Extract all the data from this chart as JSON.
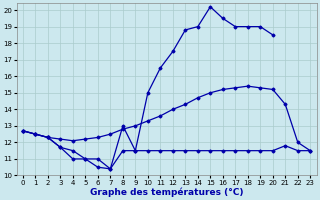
{
  "title": "Graphe des températures (°C)",
  "bg_color": "#cce8ee",
  "grid_color": "#aacccc",
  "line_color": "#0000aa",
  "xlim": [
    -0.5,
    23.5
  ],
  "ylim": [
    10,
    20.4
  ],
  "xticks": [
    0,
    1,
    2,
    3,
    4,
    5,
    6,
    7,
    8,
    9,
    10,
    11,
    12,
    13,
    14,
    15,
    16,
    17,
    18,
    19,
    20,
    21,
    22,
    23
  ],
  "yticks": [
    10,
    11,
    12,
    13,
    14,
    15,
    16,
    17,
    18,
    19,
    20
  ],
  "line_max": {
    "x": [
      0,
      1,
      2,
      3,
      4,
      5,
      6,
      7,
      8,
      9,
      10,
      11,
      12,
      13,
      14,
      15,
      16,
      17,
      18,
      19,
      20
    ],
    "y": [
      12.7,
      12.5,
      12.3,
      11.7,
      11.0,
      11.0,
      10.5,
      10.4,
      13.0,
      11.5,
      15.0,
      16.5,
      17.5,
      18.8,
      19.0,
      20.2,
      19.5,
      19.0,
      19.0,
      19.0,
      18.5
    ]
  },
  "line_min": {
    "x": [
      0,
      1,
      2,
      3,
      4,
      5,
      6,
      7,
      8,
      9,
      10,
      11,
      12,
      13,
      14,
      15,
      16,
      17,
      18,
      19,
      20,
      21,
      22,
      23
    ],
    "y": [
      12.7,
      12.5,
      12.3,
      11.7,
      11.5,
      11.0,
      11.0,
      10.4,
      11.5,
      11.5,
      11.5,
      11.5,
      11.5,
      11.5,
      11.5,
      11.5,
      11.5,
      11.5,
      11.5,
      11.5,
      11.5,
      11.8,
      11.5,
      11.5
    ]
  },
  "line_avg": {
    "x": [
      0,
      1,
      2,
      3,
      4,
      5,
      6,
      7,
      8,
      9,
      10,
      11,
      12,
      13,
      14,
      15,
      16,
      17,
      18,
      19,
      20,
      21,
      22,
      23
    ],
    "y": [
      12.7,
      12.5,
      12.3,
      12.2,
      12.1,
      12.2,
      12.3,
      12.5,
      12.8,
      13.0,
      13.3,
      13.6,
      14.0,
      14.3,
      14.7,
      15.0,
      15.2,
      15.3,
      15.4,
      15.3,
      15.2,
      14.3,
      12.0,
      11.5
    ]
  },
  "xlabel_fontsize": 6.5,
  "tick_fontsize": 5,
  "marker": "D",
  "markersize": 1.5,
  "linewidth": 0.9
}
